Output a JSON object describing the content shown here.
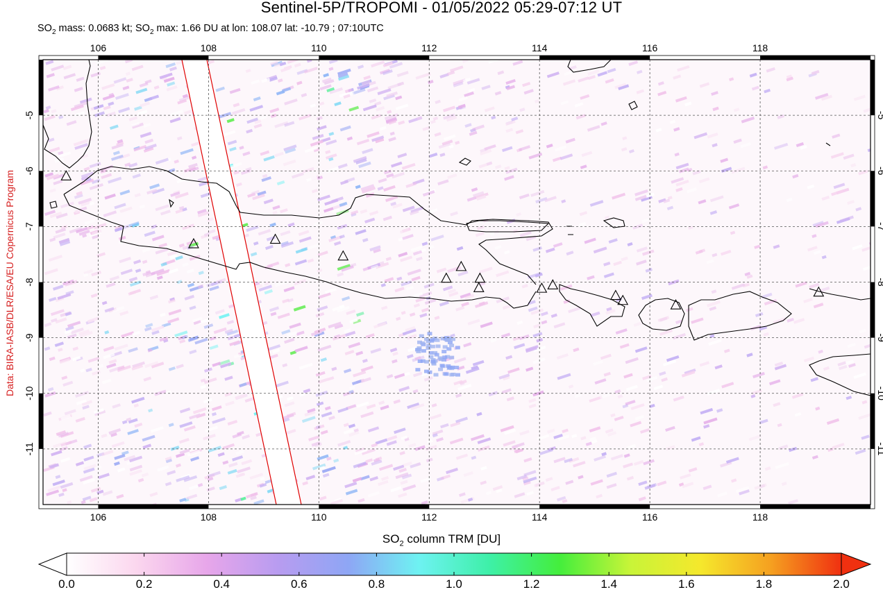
{
  "title": "Sentinel-5P/TROPOMI - 01/05/2022 05:29-07:12 UT",
  "subtitle": {
    "prefix": "SO",
    "mass_label": " mass: ",
    "mass": "0.0683 kt",
    "max_label": "; SO",
    "max_rest": " max: ",
    "max": "1.66 DU",
    "loc": " at lon: 108.07 lat: -10.79 ; 07:10UTC"
  },
  "credit": "Data: BIRA-IASB/DLR/ESA/EU Copernicus Program",
  "map": {
    "lon_range": [
      105.0,
      120.0
    ],
    "lat_range": [
      -12.0,
      -4.0
    ],
    "lon_ticks": [
      "106",
      "108",
      "110",
      "112",
      "114",
      "116",
      "118"
    ],
    "lat_ticks": [
      "-5",
      "-6",
      "-7",
      "-8",
      "-9",
      "-10",
      "-11"
    ],
    "grid": "dashed",
    "volcanoes": [
      [
        105.42,
        -6.1
      ],
      [
        107.73,
        -7.32
      ],
      [
        109.21,
        -7.24
      ],
      [
        110.44,
        -7.54
      ],
      [
        112.31,
        -7.94
      ],
      [
        112.58,
        -7.73
      ],
      [
        112.92,
        -7.94
      ],
      [
        112.9,
        -8.11
      ],
      [
        114.04,
        -8.12
      ],
      [
        114.24,
        -8.06
      ],
      [
        115.38,
        -8.25
      ],
      [
        115.51,
        -8.34
      ],
      [
        116.47,
        -8.42
      ],
      [
        119.06,
        -8.19
      ]
    ],
    "colors": {
      "coast": "#000000",
      "swath_edge": "#e00000",
      "grid": "#555555"
    }
  },
  "colorbar": {
    "title_prefix": "SO",
    "title_rest": " column TRM [DU]",
    "ticks": [
      "0.0",
      "0.2",
      "0.4",
      "0.6",
      "0.8",
      "1.0",
      "1.2",
      "1.4",
      "1.6",
      "1.8",
      "2.0"
    ],
    "range": [
      0.0,
      2.0
    ],
    "stops": [
      "#ffffff",
      "#fbd6ee",
      "#e7a6ea",
      "#b89cf0",
      "#8ea6f5",
      "#6ef2f2",
      "#3ef0a8",
      "#44ee3c",
      "#c8f438",
      "#f5e82c",
      "#f5a020",
      "#f03010"
    ]
  }
}
